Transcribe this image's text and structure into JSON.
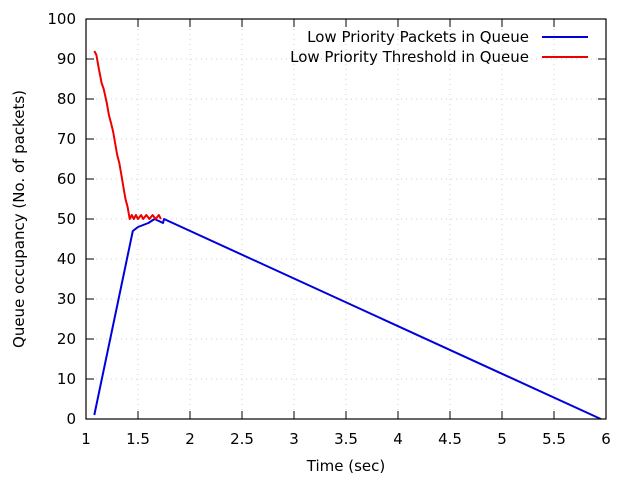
{
  "chart_data": {
    "type": "line",
    "title": "",
    "xlabel": "Time (sec)",
    "ylabel": "Queue occupancy (No. of packets)",
    "xlim": [
      1,
      6
    ],
    "ylim": [
      0,
      100
    ],
    "xticks": [
      1,
      1.5,
      2,
      2.5,
      3,
      3.5,
      4,
      4.5,
      5,
      5.5,
      6
    ],
    "xtick_labels": [
      "1",
      "1.5",
      "2",
      "2.5",
      "3",
      "3.5",
      "4",
      "4.5",
      "5",
      "5.5",
      "6"
    ],
    "yticks": [
      0,
      10,
      20,
      30,
      40,
      50,
      60,
      70,
      80,
      90,
      100
    ],
    "ytick_labels": [
      "0",
      "10",
      "20",
      "30",
      "40",
      "50",
      "60",
      "70",
      "80",
      "90",
      "100"
    ],
    "grid": true,
    "legend_position": "top-right",
    "series": [
      {
        "name": "Low Priority Packets in Queue",
        "color": "#0000dd",
        "points": [
          [
            1.08,
            1
          ],
          [
            1.45,
            47
          ],
          [
            1.5,
            48
          ],
          [
            1.6,
            49
          ],
          [
            1.66,
            50
          ],
          [
            1.74,
            49
          ],
          [
            1.75,
            50
          ],
          [
            5.95,
            0
          ]
        ]
      },
      {
        "name": "Low Priority Threshold in Queue",
        "color": "#ee0000",
        "points": [
          [
            1.08,
            92
          ],
          [
            1.1,
            91
          ],
          [
            1.12,
            88
          ],
          [
            1.15,
            84
          ],
          [
            1.17,
            82.5
          ],
          [
            1.2,
            79
          ],
          [
            1.22,
            76
          ],
          [
            1.24,
            74
          ],
          [
            1.26,
            72
          ],
          [
            1.28,
            69
          ],
          [
            1.3,
            66
          ],
          [
            1.32,
            64
          ],
          [
            1.34,
            61
          ],
          [
            1.36,
            58
          ],
          [
            1.38,
            55
          ],
          [
            1.4,
            53
          ],
          [
            1.42,
            50
          ],
          [
            1.44,
            51
          ],
          [
            1.46,
            50
          ],
          [
            1.48,
            51
          ],
          [
            1.5,
            50
          ],
          [
            1.53,
            51
          ],
          [
            1.55,
            50
          ],
          [
            1.58,
            51
          ],
          [
            1.61,
            50
          ],
          [
            1.64,
            51
          ],
          [
            1.67,
            50
          ],
          [
            1.7,
            51
          ],
          [
            1.72,
            50
          ]
        ]
      }
    ]
  }
}
